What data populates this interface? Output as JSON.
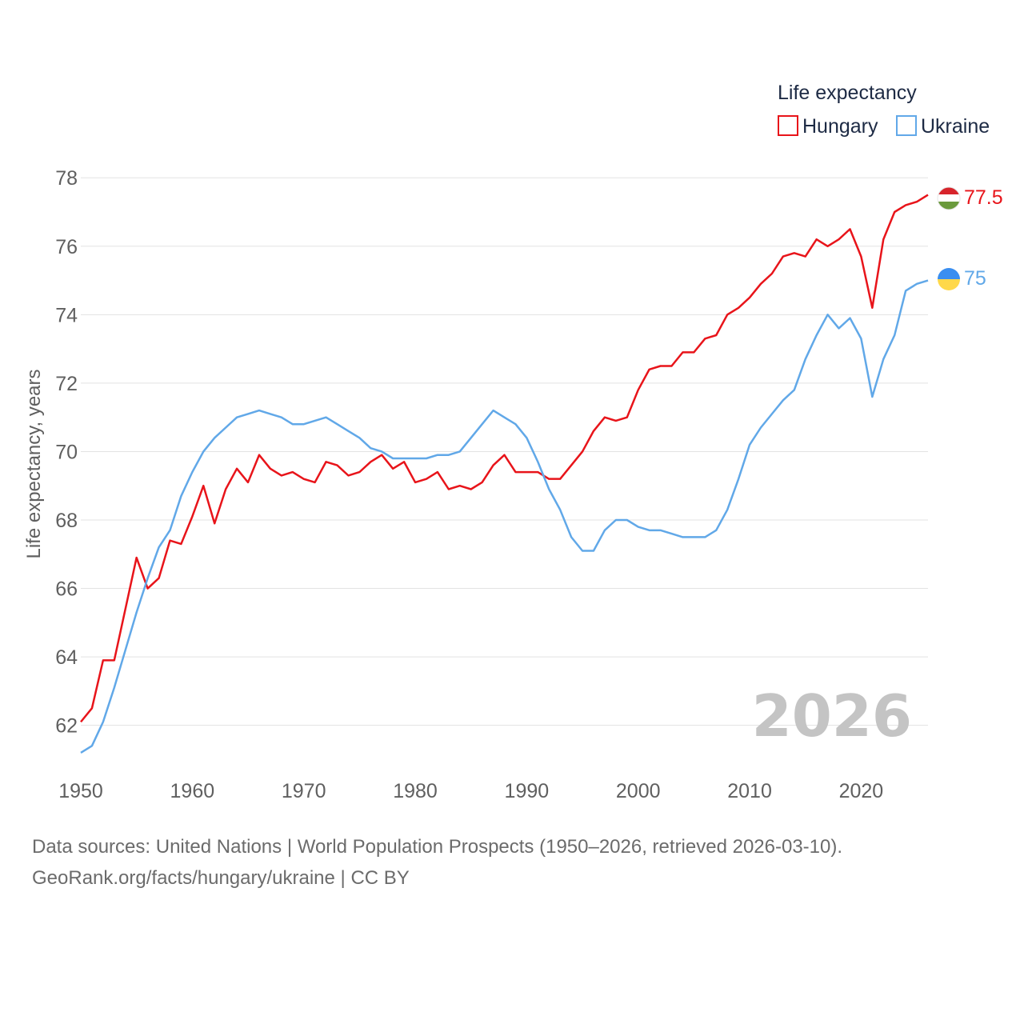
{
  "chart_data": {
    "type": "line",
    "legend_title": "Life expectancy",
    "legend_position": "top-right",
    "ylabel": "Life expectancy, years",
    "xlabel": "",
    "ylim": [
      60.8,
      78.8
    ],
    "xlim": [
      1950,
      2026
    ],
    "yticks": [
      62,
      64,
      66,
      68,
      70,
      72,
      74,
      76,
      78
    ],
    "xticks": [
      1950,
      1960,
      1970,
      1980,
      1990,
      2000,
      2010,
      2020
    ],
    "grid": true,
    "year_watermark": "2026",
    "x": [
      1950,
      1951,
      1952,
      1953,
      1954,
      1955,
      1956,
      1957,
      1958,
      1959,
      1960,
      1961,
      1962,
      1963,
      1964,
      1965,
      1966,
      1967,
      1968,
      1969,
      1970,
      1971,
      1972,
      1973,
      1974,
      1975,
      1976,
      1977,
      1978,
      1979,
      1980,
      1981,
      1982,
      1983,
      1984,
      1985,
      1986,
      1987,
      1988,
      1989,
      1990,
      1991,
      1992,
      1993,
      1994,
      1995,
      1996,
      1997,
      1998,
      1999,
      2000,
      2001,
      2002,
      2003,
      2004,
      2005,
      2006,
      2007,
      2008,
      2009,
      2010,
      2011,
      2012,
      2013,
      2014,
      2015,
      2016,
      2017,
      2018,
      2019,
      2020,
      2021,
      2022,
      2023,
      2024,
      2025,
      2026
    ],
    "series": [
      {
        "name": "Hungary",
        "color": "#e8141a",
        "flag": "hungary-flag-icon",
        "end_label": "77.5",
        "values": [
          62.1,
          62.5,
          63.9,
          63.9,
          65.4,
          66.9,
          66.0,
          66.3,
          67.4,
          67.3,
          68.1,
          69.0,
          67.9,
          68.9,
          69.5,
          69.1,
          69.9,
          69.5,
          69.3,
          69.4,
          69.2,
          69.1,
          69.7,
          69.6,
          69.3,
          69.4,
          69.7,
          69.9,
          69.5,
          69.7,
          69.1,
          69.2,
          69.4,
          68.9,
          69.0,
          68.9,
          69.1,
          69.6,
          69.9,
          69.4,
          69.4,
          69.4,
          69.2,
          69.2,
          69.6,
          70.0,
          70.6,
          71.0,
          70.9,
          71.0,
          71.8,
          72.4,
          72.5,
          72.5,
          72.9,
          72.9,
          73.3,
          73.4,
          74.0,
          74.2,
          74.5,
          74.9,
          75.2,
          75.7,
          75.8,
          75.7,
          76.2,
          76.0,
          76.2,
          76.5,
          75.7,
          74.2,
          76.2,
          77.0,
          77.2,
          77.3,
          77.5
        ]
      },
      {
        "name": "Ukraine",
        "color": "#61a8e8",
        "flag": "ukraine-flag-icon",
        "end_label": "75",
        "values": [
          61.2,
          61.4,
          62.1,
          63.1,
          64.2,
          65.3,
          66.3,
          67.2,
          67.7,
          68.7,
          69.4,
          70.0,
          70.4,
          70.7,
          71.0,
          71.1,
          71.2,
          71.1,
          71.0,
          70.8,
          70.8,
          70.9,
          71.0,
          70.8,
          70.6,
          70.4,
          70.1,
          70.0,
          69.8,
          69.8,
          69.8,
          69.8,
          69.9,
          69.9,
          70.0,
          70.4,
          70.8,
          71.2,
          71.0,
          70.8,
          70.4,
          69.7,
          68.9,
          68.3,
          67.5,
          67.1,
          67.1,
          67.7,
          68.0,
          68.0,
          67.8,
          67.7,
          67.7,
          67.6,
          67.5,
          67.5,
          67.5,
          67.7,
          68.3,
          69.2,
          70.2,
          70.7,
          71.1,
          71.5,
          71.8,
          72.7,
          73.4,
          74.0,
          73.6,
          73.9,
          73.3,
          71.6,
          72.7,
          73.4,
          74.7,
          74.9,
          75.0
        ]
      }
    ]
  },
  "footer": {
    "sources": "Data sources: United Nations | World Population Prospects (1950–2026, retrieved 2026-03-10).",
    "credit": "GeoRank.org/facts/hungary/ukraine | CC BY"
  }
}
